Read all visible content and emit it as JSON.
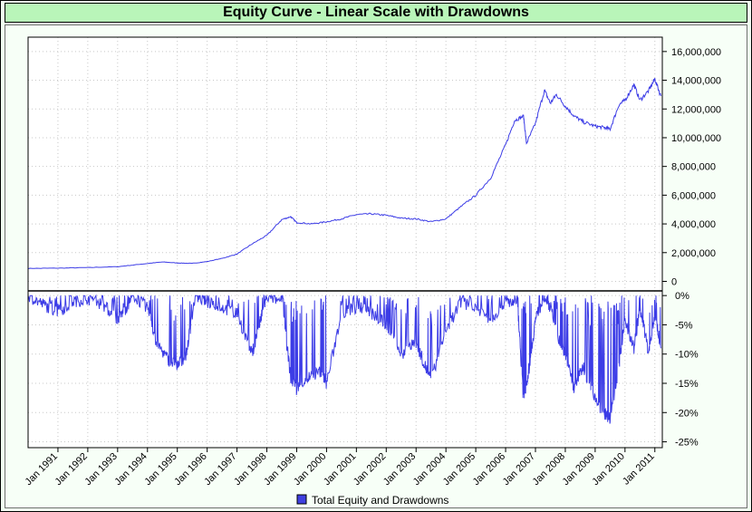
{
  "title": "Equity Curve - Linear Scale with Drawdowns",
  "legend": {
    "label": "Total Equity and Drawdowns",
    "color": "#4040e0",
    "placement": "bottom-center"
  },
  "colors": {
    "title_bg": "#b9f5b9",
    "frame_bg": "#f0fff0",
    "series": "#3c3ce6",
    "grid": "#c8c8c8"
  },
  "chart_data": [
    {
      "type": "line",
      "name": "equity",
      "title": "",
      "ylabel": "",
      "ylim": [
        -600000,
        17000000
      ],
      "yticks": [
        {
          "value": 16000000,
          "label": "16,000,000"
        },
        {
          "value": 14000000,
          "label": "14,000,000"
        },
        {
          "value": 12000000,
          "label": "12,000,000"
        },
        {
          "value": 10000000,
          "label": "10,000,000"
        },
        {
          "value": 8000000,
          "label": "8,000,000"
        },
        {
          "value": 6000000,
          "label": "6,000,000"
        },
        {
          "value": 4000000,
          "label": "4,000,000"
        },
        {
          "value": 2000000,
          "label": "2,000,000"
        },
        {
          "value": 0,
          "label": "0"
        }
      ],
      "grid": true,
      "x": [
        1990.0,
        1991.0,
        1992.0,
        1993.0,
        1993.8,
        1994.5,
        1995.0,
        1995.5,
        1996.0,
        1996.5,
        1997.0,
        1997.5,
        1998.0,
        1998.5,
        1998.8,
        1999.0,
        1999.5,
        2000.0,
        2000.5,
        2001.0,
        2001.5,
        2002.0,
        2002.5,
        2003.0,
        2003.5,
        2004.0,
        2004.5,
        2005.0,
        2005.5,
        2006.0,
        2006.3,
        2006.6,
        2006.7,
        2007.0,
        2007.3,
        2007.5,
        2007.7,
        2008.0,
        2008.3,
        2008.6,
        2009.0,
        2009.3,
        2009.5,
        2009.8,
        2010.0,
        2010.3,
        2010.5,
        2010.8,
        2011.0,
        2011.2
      ],
      "y": [
        900000,
        920000,
        960000,
        1020000,
        1200000,
        1350000,
        1280000,
        1250000,
        1380000,
        1600000,
        1900000,
        2600000,
        3200000,
        4300000,
        4500000,
        4100000,
        4000000,
        4150000,
        4350000,
        4650000,
        4700000,
        4600000,
        4400000,
        4350000,
        4150000,
        4350000,
        5200000,
        6000000,
        7200000,
        9500000,
        11200000,
        11500000,
        9600000,
        11000000,
        13300000,
        12400000,
        13000000,
        12200000,
        11500000,
        11100000,
        10800000,
        10700000,
        10600000,
        12300000,
        12600000,
        13700000,
        12600000,
        13300000,
        14100000,
        12900000
      ]
    },
    {
      "type": "area",
      "name": "drawdown",
      "title": "",
      "ylabel": "",
      "ylim": [
        -26,
        0.8
      ],
      "yticks": [
        {
          "value": 0,
          "label": "0%"
        },
        {
          "value": -5,
          "label": "-5%"
        },
        {
          "value": -10,
          "label": "-10%"
        },
        {
          "value": -15,
          "label": "-15%"
        },
        {
          "value": -20,
          "label": "-20%"
        },
        {
          "value": -25,
          "label": "-25%"
        }
      ],
      "grid": true,
      "x": [
        1990.0,
        1990.5,
        1991.0,
        1991.5,
        1992.0,
        1992.5,
        1993.0,
        1993.3,
        1993.5,
        1994.0,
        1994.3,
        1994.7,
        1995.0,
        1995.3,
        1995.6,
        1996.0,
        1996.5,
        1997.0,
        1997.5,
        1997.8,
        1998.0,
        1998.5,
        1998.8,
        1999.0,
        1999.4,
        1999.8,
        2000.0,
        2000.5,
        2001.0,
        2001.5,
        2002.0,
        2002.5,
        2003.0,
        2003.3,
        2003.5,
        2004.0,
        2004.5,
        2005.0,
        2005.5,
        2006.0,
        2006.4,
        2006.6,
        2006.8,
        2007.0,
        2007.3,
        2007.5,
        2007.8,
        2008.0,
        2008.3,
        2008.6,
        2009.0,
        2009.3,
        2009.5,
        2009.8,
        2010.0,
        2010.3,
        2010.5,
        2010.8,
        2011.0,
        2011.2
      ],
      "y": [
        0,
        -1.5,
        -2.8,
        -1.0,
        -0.5,
        -1.5,
        -4.0,
        -2.0,
        0,
        -2.0,
        -8.0,
        -11.0,
        -12.0,
        -10.0,
        0,
        -1.0,
        -2.0,
        -3.0,
        -10.0,
        -4.0,
        0,
        -1.0,
        -14.0,
        -16.0,
        -14.0,
        -13.0,
        -15.0,
        -3.0,
        -2.0,
        -3.0,
        -5.0,
        -10.0,
        -8.0,
        -12.0,
        -14.5,
        -6.0,
        -1.0,
        -2.0,
        -4.0,
        -1.0,
        -1.0,
        -18.0,
        -12.0,
        -4.0,
        0,
        -2.0,
        -8.0,
        -10.0,
        -16.0,
        -12.0,
        -18.0,
        -20.0,
        -21.0,
        -12.0,
        -4.0,
        -9.0,
        -2.0,
        -10.0,
        -3.0,
        -9.0
      ]
    }
  ],
  "x_axis": {
    "type": "date",
    "xlim": [
      1990.0,
      2011.25
    ],
    "ticks": [
      {
        "value": 1991.0,
        "label": "Jan 1991"
      },
      {
        "value": 1992.0,
        "label": "Jan 1992"
      },
      {
        "value": 1993.0,
        "label": "Jan 1993"
      },
      {
        "value": 1994.0,
        "label": "Jan 1994"
      },
      {
        "value": 1995.0,
        "label": "Jan 1995"
      },
      {
        "value": 1996.0,
        "label": "Jan 1996"
      },
      {
        "value": 1997.0,
        "label": "Jan 1997"
      },
      {
        "value": 1998.0,
        "label": "Jan 1998"
      },
      {
        "value": 1999.0,
        "label": "Jan 1999"
      },
      {
        "value": 2000.0,
        "label": "Jan 2000"
      },
      {
        "value": 2001.0,
        "label": "Jan 2001"
      },
      {
        "value": 2002.0,
        "label": "Jan 2002"
      },
      {
        "value": 2003.0,
        "label": "Jan 2003"
      },
      {
        "value": 2004.0,
        "label": "Jan 2004"
      },
      {
        "value": 2005.0,
        "label": "Jan 2005"
      },
      {
        "value": 2006.0,
        "label": "Jan 2006"
      },
      {
        "value": 2007.0,
        "label": "Jan 2007"
      },
      {
        "value": 2008.0,
        "label": "Jan 2008"
      },
      {
        "value": 2009.0,
        "label": "Jan 2009"
      },
      {
        "value": 2010.0,
        "label": "Jan 2010"
      },
      {
        "value": 2011.0,
        "label": "Jan 2011"
      }
    ]
  }
}
